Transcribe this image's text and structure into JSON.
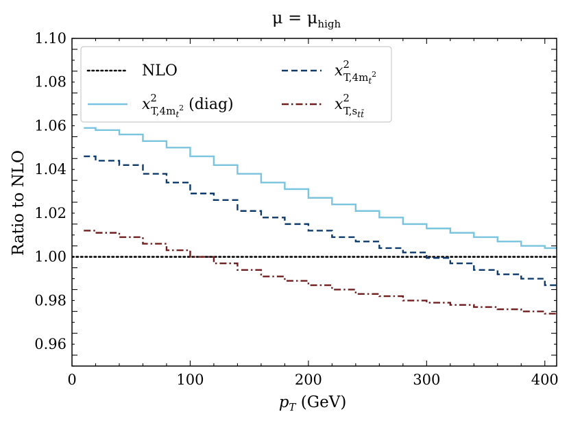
{
  "chart_data": {
    "type": "line",
    "drawstyle": "steps-post",
    "title": "μ = μhigh",
    "title_parts": {
      "base": "μ = μ",
      "sub": "high"
    },
    "xlabel": "p_T (GeV)",
    "xlabel_parts": {
      "var": "p",
      "sub": "T",
      "unit": " (GeV)"
    },
    "ylabel": "Ratio to NLO",
    "xlim": [
      0,
      410
    ],
    "ylim": [
      0.95,
      1.1
    ],
    "xticks": [
      0,
      100,
      200,
      300,
      400
    ],
    "xtick_labels": [
      "0",
      "100",
      "200",
      "300",
      "400"
    ],
    "yticks": [
      0.96,
      0.98,
      1.0,
      1.02,
      1.04,
      1.06,
      1.08,
      1.1
    ],
    "ytick_labels": [
      "0.96",
      "0.98",
      "1.00",
      "1.02",
      "1.04",
      "1.06",
      "1.08",
      "1.10"
    ],
    "bin_edges": [
      10,
      20,
      40,
      60,
      80,
      100,
      120,
      140,
      160,
      180,
      200,
      220,
      240,
      260,
      280,
      300,
      320,
      340,
      360,
      380,
      400,
      410
    ],
    "legend_location": "upper-left",
    "series": [
      {
        "name": "NLO",
        "label_base": "NLO",
        "color": "#000000",
        "style": "dotted",
        "x": [
          0,
          410
        ],
        "values": [
          1.0,
          1.0
        ]
      },
      {
        "name": "x^2_{T,4m_t^2} (diag)",
        "label_base": "x",
        "label_sup": "2",
        "label_sub": "T,4m",
        "label_subsub": "t",
        "label_subsup": "2",
        "label_suffix": " (diag)",
        "color": "#7ac4df",
        "style": "solid",
        "values": [
          1.059,
          1.058,
          1.056,
          1.053,
          1.05,
          1.046,
          1.042,
          1.038,
          1.034,
          1.031,
          1.027,
          1.024,
          1.021,
          1.018,
          1.015,
          1.013,
          1.011,
          1.009,
          1.007,
          1.005,
          1.004
        ]
      },
      {
        "name": "x^2_{T,4m_t^2}",
        "label_base": "x",
        "label_sup": "2",
        "label_sub": "T,4m",
        "label_subsub": "t",
        "label_subsup": "2",
        "label_suffix": "",
        "color": "#0d3a6b",
        "style": "dashed",
        "values": [
          1.046,
          1.044,
          1.042,
          1.038,
          1.034,
          1.029,
          1.026,
          1.021,
          1.018,
          1.015,
          1.012,
          1.009,
          1.007,
          1.004,
          1.002,
          0.9995,
          0.997,
          0.994,
          0.992,
          0.99,
          0.987
        ]
      },
      {
        "name": "x^2_{T,s_{tt̄}}",
        "label_base": "x",
        "label_sup": "2",
        "label_sub": "T,s",
        "label_subsub": "tt̄",
        "label_subsup": "",
        "label_suffix": "",
        "color": "#6e1e1e",
        "style": "dashdot",
        "values": [
          1.012,
          1.011,
          1.009,
          1.006,
          1.003,
          1.0,
          0.997,
          0.994,
          0.991,
          0.989,
          0.987,
          0.985,
          0.983,
          0.982,
          0.98,
          0.979,
          0.978,
          0.977,
          0.976,
          0.975,
          0.974
        ]
      }
    ]
  }
}
